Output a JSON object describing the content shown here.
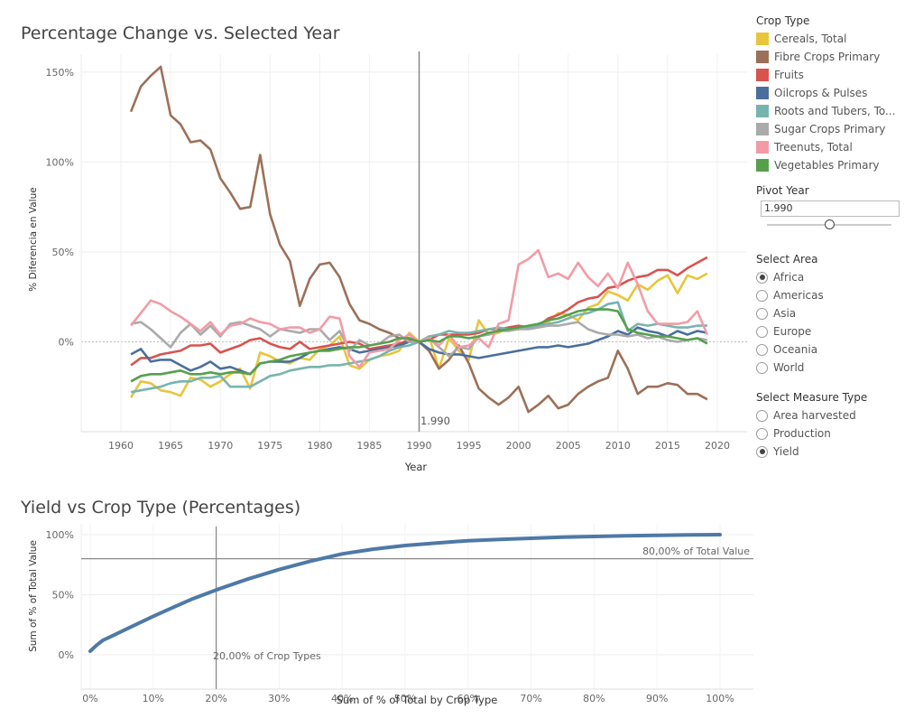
{
  "top_chart": {
    "title": "Percentage Change vs. Selected Year",
    "y_label": "% Diferencia en Value",
    "x_label": "Year",
    "pivot_label": "1.990",
    "y_ticks": [
      "150%",
      "100%",
      "50%",
      "0%"
    ],
    "x_ticks": [
      "1960",
      "1965",
      "1970",
      "1975",
      "1980",
      "1985",
      "1990",
      "1995",
      "2000",
      "2005",
      "2010",
      "2015",
      "2020"
    ]
  },
  "bottom_chart": {
    "title": "Yield vs Crop Type (Percentages)",
    "y_label": "Sum of % of Total Value",
    "x_label": "Sum of % of Total by Crop Type",
    "ref_line_h": "80,00% of Total Value",
    "ref_line_v": "20,00% of Crop Types",
    "y_ticks": [
      "100%",
      "50%",
      "0%"
    ],
    "x_ticks": [
      "0%",
      "10%",
      "20%",
      "30%",
      "40%",
      "50%",
      "60%",
      "70%",
      "80%",
      "90%",
      "100%"
    ]
  },
  "legend": {
    "title": "Crop Type",
    "items": [
      {
        "label": "Cereals, Total",
        "color": "#e8c53c"
      },
      {
        "label": "Fibre Crops Primary",
        "color": "#9c7058"
      },
      {
        "label": "Fruits",
        "color": "#d9534f"
      },
      {
        "label": "Oilcrops & Pulses",
        "color": "#4a6f9c"
      },
      {
        "label": "Roots and Tubers, To...",
        "color": "#78b4ae"
      },
      {
        "label": "Sugar Crops Primary",
        "color": "#aaaaaa"
      },
      {
        "label": "Treenuts, Total",
        "color": "#f29ba6"
      },
      {
        "label": "Vegetables Primary",
        "color": "#56a04c"
      }
    ]
  },
  "pivot_year": {
    "title": "Pivot Year",
    "value": "1.990",
    "slider_level": 0.5
  },
  "select_area": {
    "title": "Select Area",
    "options": [
      "Africa",
      "Americas",
      "Asia",
      "Europe",
      "Oceania",
      "World"
    ],
    "selected": "Africa"
  },
  "select_measure": {
    "title": "Select Measure Type",
    "options": [
      "Area harvested",
      "Production",
      "Yield"
    ],
    "selected": "Yield"
  },
  "chart_data": [
    {
      "type": "line",
      "title": "Percentage Change vs. Selected Year",
      "xlabel": "Year",
      "ylabel": "% Diferencia en Value",
      "xlim": [
        1956,
        2023
      ],
      "ylim": [
        -50,
        160
      ],
      "pivot_year": 1990,
      "x": [
        1961,
        1962,
        1963,
        1964,
        1965,
        1966,
        1967,
        1968,
        1969,
        1970,
        1971,
        1972,
        1973,
        1974,
        1975,
        1976,
        1977,
        1978,
        1979,
        1980,
        1981,
        1982,
        1983,
        1984,
        1985,
        1986,
        1987,
        1988,
        1989,
        1990,
        1991,
        1992,
        1993,
        1994,
        1995,
        1996,
        1997,
        1998,
        1999,
        2000,
        2001,
        2002,
        2003,
        2004,
        2005,
        2006,
        2007,
        2008,
        2009,
        2010,
        2011,
        2012,
        2013,
        2014,
        2015,
        2016,
        2017,
        2018,
        2019
      ],
      "series": [
        {
          "name": "Cereals, Total",
          "values": [
            -31,
            -22,
            -23,
            -27,
            -28,
            -30,
            -20,
            -21,
            -25,
            -22,
            -18,
            -15,
            -26,
            -6,
            -8,
            -11,
            -12,
            -9,
            -10,
            -4,
            -2,
            3,
            -13,
            -15,
            -10,
            -8,
            -7,
            -5,
            5,
            0,
            3,
            -15,
            2,
            -5,
            -10,
            12,
            4,
            5,
            8,
            9,
            8,
            9,
            11,
            16,
            15,
            12,
            19,
            21,
            28,
            26,
            23,
            32,
            29,
            34,
            37,
            27,
            37,
            35,
            38
          ]
        },
        {
          "name": "Fibre Crops Primary",
          "values": [
            128,
            142,
            148,
            153,
            126,
            121,
            111,
            112,
            107,
            91,
            83,
            74,
            75,
            104,
            71,
            54,
            45,
            20,
            35,
            43,
            44,
            36,
            21,
            12,
            10,
            7,
            5,
            2,
            2,
            0,
            -5,
            -15,
            -10,
            -2,
            -12,
            -26,
            -31,
            -35,
            -31,
            -25,
            -39,
            -35,
            -30,
            -37,
            -35,
            -29,
            -25,
            -22,
            -20,
            -5,
            -15,
            -29,
            -25,
            -25,
            -23,
            -24,
            -29,
            -29,
            -32
          ]
        },
        {
          "name": "Fruits",
          "values": [
            -13,
            -9,
            -9,
            -7,
            -6,
            -5,
            -2,
            -2,
            -1,
            -6,
            -4,
            -2,
            1,
            2,
            -1,
            -3,
            -4,
            0,
            -4,
            -3,
            -2,
            -1,
            0,
            -1,
            -4,
            -3,
            -2,
            -1,
            1,
            0,
            1,
            4,
            4,
            4,
            4,
            5,
            7,
            7,
            8,
            9,
            8,
            9,
            13,
            15,
            18,
            22,
            24,
            25,
            30,
            31,
            34,
            36,
            37,
            40,
            40,
            37,
            41,
            44,
            47
          ]
        },
        {
          "name": "Oilcrops & Pulses",
          "values": [
            -7,
            -4,
            -11,
            -10,
            -10,
            -13,
            -16,
            -14,
            -11,
            -15,
            -14,
            -16,
            -18,
            -12,
            -11,
            -11,
            -11,
            -9,
            -6,
            -5,
            -4,
            -3,
            -4,
            -6,
            -5,
            -4,
            -3,
            -2,
            0,
            0,
            -4,
            -6,
            -7,
            -7,
            -8,
            -9,
            -8,
            -7,
            -6,
            -5,
            -4,
            -3,
            -3,
            -2,
            -3,
            -2,
            -1,
            1,
            3,
            6,
            4,
            8,
            6,
            5,
            3,
            6,
            4,
            6,
            5
          ]
        },
        {
          "name": "Roots and Tubers, To...",
          "values": [
            -28,
            -27,
            -26,
            -25,
            -23,
            -22,
            -22,
            -20,
            -20,
            -19,
            -25,
            -25,
            -25,
            -22,
            -19,
            -18,
            -16,
            -15,
            -14,
            -14,
            -13,
            -13,
            -12,
            -11,
            -10,
            -8,
            -5,
            -3,
            -2,
            0,
            3,
            4,
            6,
            5,
            5,
            6,
            7,
            8,
            7,
            7,
            8,
            9,
            10,
            11,
            13,
            15,
            16,
            18,
            21,
            22,
            6,
            10,
            9,
            10,
            9,
            8,
            8,
            9,
            9
          ]
        },
        {
          "name": "Sugar Crops Primary",
          "values": [
            10,
            11,
            7,
            2,
            -3,
            5,
            10,
            4,
            9,
            3,
            10,
            11,
            9,
            7,
            3,
            7,
            6,
            5,
            7,
            7,
            1,
            6,
            -5,
            1,
            -2,
            -1,
            3,
            4,
            0,
            0,
            2,
            -3,
            -8,
            -3,
            -4,
            3,
            4,
            6,
            6,
            7,
            7,
            8,
            9,
            9,
            10,
            11,
            7,
            5,
            4,
            4,
            3,
            4,
            2,
            3,
            1,
            0,
            1,
            2,
            1
          ]
        },
        {
          "name": "Treenuts, Total",
          "values": [
            9,
            16,
            23,
            21,
            17,
            14,
            10,
            6,
            11,
            4,
            9,
            10,
            13,
            11,
            10,
            7,
            8,
            8,
            5,
            7,
            14,
            13,
            -8,
            -14,
            -6,
            -5,
            -4,
            1,
            4,
            0,
            2,
            -2,
            4,
            -3,
            -2,
            2,
            -3,
            10,
            12,
            43,
            46,
            51,
            36,
            38,
            35,
            44,
            36,
            31,
            38,
            30,
            44,
            32,
            17,
            10,
            10,
            10,
            11,
            17,
            4
          ]
        },
        {
          "name": "Vegetables Primary",
          "values": [
            -22,
            -19,
            -18,
            -18,
            -17,
            -16,
            -18,
            -18,
            -17,
            -18,
            -17,
            -17,
            -18,
            -12,
            -11,
            -10,
            -8,
            -7,
            -6,
            -5,
            -5,
            -4,
            -3,
            -3,
            -2,
            -1,
            0,
            2,
            2,
            0,
            1,
            0,
            3,
            3,
            2,
            3,
            5,
            6,
            7,
            8,
            9,
            10,
            12,
            13,
            15,
            17,
            18,
            18,
            18,
            17,
            7,
            5,
            4,
            3,
            3,
            2,
            1,
            2,
            -1
          ]
        }
      ]
    },
    {
      "type": "line",
      "title": "Yield vs Crop Type (Percentages)",
      "xlabel": "Sum of % of Total by Crop Type",
      "ylabel": "Sum of % of Total Value",
      "xlim": [
        0,
        100
      ],
      "ylim": [
        0,
        100
      ],
      "reference_lines": {
        "y": 80,
        "x": 20
      },
      "x": [
        0,
        1,
        2,
        4,
        6,
        8,
        10,
        13,
        16,
        20,
        25,
        30,
        35,
        40,
        45,
        50,
        55,
        60,
        65,
        70,
        75,
        80,
        85,
        90,
        95,
        100
      ],
      "series": [
        {
          "values": [
            3,
            8,
            12,
            17,
            22,
            27,
            32,
            39,
            46,
            54,
            63,
            71,
            78,
            84,
            88,
            91,
            93,
            95,
            96,
            97,
            98,
            98.5,
            99,
            99.5,
            99.8,
            100
          ]
        }
      ]
    }
  ]
}
